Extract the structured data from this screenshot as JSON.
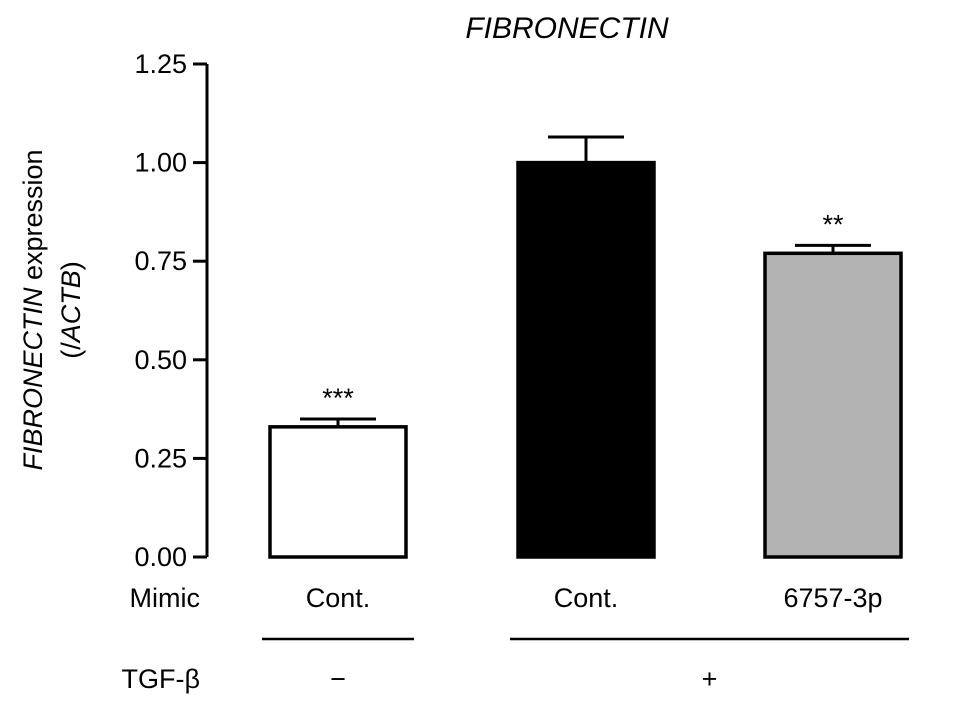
{
  "chart_data": {
    "type": "bar",
    "title": "FIBRONECTIN",
    "ylabel": {
      "line1": [
        {
          "text": "FIBRONECTIN",
          "italic": true
        },
        {
          "text": " expression",
          "italic": false
        }
      ],
      "line2": [
        {
          "text": "(/",
          "italic": false
        },
        {
          "text": "ACTB",
          "italic": true
        },
        {
          "text": ")",
          "italic": false
        }
      ]
    },
    "ylim": [
      0,
      1.25
    ],
    "yticks": [
      "0.00",
      "0.25",
      "0.50",
      "0.75",
      "1.00",
      "1.25"
    ],
    "categories": [
      "Cont.",
      "Cont.",
      "6757-3p"
    ],
    "values": [
      0.33,
      1.0,
      0.77
    ],
    "errors": [
      0.02,
      0.065,
      0.02
    ],
    "colors": [
      "#ffffff",
      "#000000",
      "#b3b3b3"
    ],
    "significance": [
      "***",
      "",
      "**"
    ],
    "row_labels": {
      "mimic": "Mimic",
      "tgf": "TGF-β"
    },
    "tgf_groups": [
      {
        "label": "−",
        "bars": [
          0
        ]
      },
      {
        "label": "+",
        "bars": [
          1,
          2
        ]
      }
    ]
  }
}
